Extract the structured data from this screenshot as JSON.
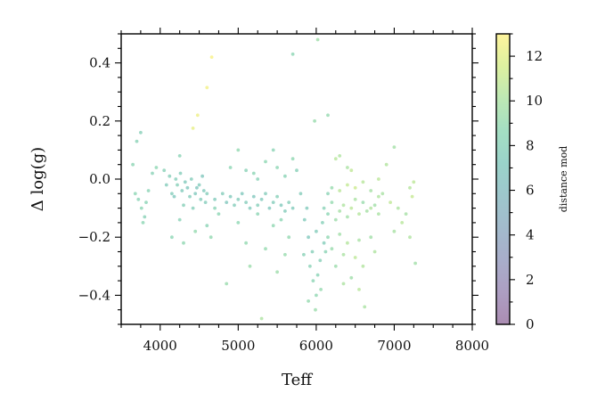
{
  "chart_data": {
    "type": "scatter",
    "title": "",
    "xlabel": "Teff",
    "ylabel": "Δ log(g)",
    "xlim": [
      3500,
      8000
    ],
    "ylim": [
      -0.5,
      0.5
    ],
    "xticks": [
      4000,
      5000,
      6000,
      7000,
      8000
    ],
    "xtick_labels": [
      "4000",
      "5000",
      "6000",
      "7000",
      "8000"
    ],
    "yticks": [
      0.4,
      0.2,
      0.0,
      -0.2,
      -0.4
    ],
    "ytick_labels": [
      "0.4",
      "0.2",
      "0.0",
      "−0.2",
      "−0.4"
    ],
    "grid": false,
    "colorbar": {
      "label": "distance mod",
      "colormap": "viridis",
      "range": [
        0,
        13
      ],
      "ticks": [
        0,
        2,
        4,
        6,
        8,
        10,
        12
      ],
      "tick_labels": [
        "0",
        "2",
        "4",
        "6",
        "8",
        "10",
        "12"
      ]
    },
    "marker_alpha": 0.45,
    "points": [
      [
        3650,
        0.05,
        8.5
      ],
      [
        3700,
        0.13,
        8.2
      ],
      [
        3750,
        0.16,
        8.0
      ],
      [
        3680,
        -0.05,
        8.6
      ],
      [
        3720,
        -0.07,
        8.3
      ],
      [
        3760,
        -0.1,
        8.5
      ],
      [
        3800,
        -0.13,
        8.1
      ],
      [
        3850,
        -0.04,
        8.4
      ],
      [
        3900,
        0.02,
        8.2
      ],
      [
        3950,
        0.04,
        8.7
      ],
      [
        3780,
        -0.15,
        8.6
      ],
      [
        3820,
        -0.08,
        8.3
      ],
      [
        4050,
        0.03,
        8.1
      ],
      [
        4080,
        -0.02,
        7.5
      ],
      [
        4120,
        0.01,
        7.8
      ],
      [
        4150,
        -0.05,
        7.6
      ],
      [
        4180,
        -0.06,
        7.2
      ],
      [
        4200,
        0.0,
        7.8
      ],
      [
        4220,
        -0.02,
        8.0
      ],
      [
        4250,
        0.08,
        8.3
      ],
      [
        4260,
        0.02,
        7.7
      ],
      [
        4280,
        -0.04,
        7.4
      ],
      [
        4300,
        -0.09,
        7.9
      ],
      [
        4320,
        -0.01,
        7.3
      ],
      [
        4350,
        -0.03,
        7.1
      ],
      [
        4380,
        -0.06,
        7.5
      ],
      [
        4400,
        0.0,
        7.6
      ],
      [
        4420,
        -0.1,
        7.8
      ],
      [
        4450,
        -0.05,
        7.2
      ],
      [
        4470,
        -0.03,
        7.0
      ],
      [
        4500,
        -0.02,
        7.4
      ],
      [
        4520,
        -0.07,
        7.6
      ],
      [
        4540,
        0.01,
        7.1
      ],
      [
        4560,
        -0.04,
        7.3
      ],
      [
        4580,
        -0.08,
        7.5
      ],
      [
        4600,
        -0.05,
        7.7
      ],
      [
        4150,
        -0.2,
        8.6
      ],
      [
        4250,
        -0.14,
        8.2
      ],
      [
        4300,
        -0.22,
        8.8
      ],
      [
        4450,
        -0.18,
        9.0
      ],
      [
        4600,
        -0.16,
        8.4
      ],
      [
        4650,
        -0.2,
        8.9
      ],
      [
        4700,
        -0.1,
        8.3
      ],
      [
        4750,
        -0.12,
        8.6
      ],
      [
        4420,
        0.175,
        12.2
      ],
      [
        4480,
        0.22,
        12.4
      ],
      [
        4600,
        0.315,
        12.6
      ],
      [
        4660,
        0.42,
        12.8
      ],
      [
        4700,
        -0.07,
        7.4
      ],
      [
        4800,
        -0.05,
        7.6
      ],
      [
        4850,
        -0.08,
        7.1
      ],
      [
        4900,
        -0.06,
        7.3
      ],
      [
        4950,
        -0.09,
        7.7
      ],
      [
        5000,
        -0.07,
        7.5
      ],
      [
        5050,
        -0.05,
        7.2
      ],
      [
        5100,
        -0.08,
        7.6
      ],
      [
        5150,
        -0.1,
        7.4
      ],
      [
        5200,
        -0.06,
        7.1
      ],
      [
        5250,
        -0.09,
        7.8
      ],
      [
        5300,
        -0.07,
        7.3
      ],
      [
        5350,
        -0.05,
        7.6
      ],
      [
        5400,
        -0.1,
        7.2
      ],
      [
        5450,
        -0.08,
        7.5
      ],
      [
        5500,
        -0.06,
        7.9
      ],
      [
        5550,
        -0.09,
        7.3
      ],
      [
        5600,
        -0.11,
        7.6
      ],
      [
        5650,
        -0.08,
        7.8
      ],
      [
        5700,
        -0.1,
        7.4
      ],
      [
        4900,
        0.04,
        8.6
      ],
      [
        5000,
        0.1,
        8.9
      ],
      [
        5100,
        0.03,
        8.2
      ],
      [
        5200,
        0.02,
        8.5
      ],
      [
        5350,
        0.06,
        8.7
      ],
      [
        5450,
        0.1,
        8.4
      ],
      [
        5500,
        0.04,
        8.6
      ],
      [
        5600,
        0.01,
        8.3
      ],
      [
        5700,
        0.07,
        8.8
      ],
      [
        5250,
        0.0,
        8.1
      ],
      [
        4850,
        -0.36,
        9.2
      ],
      [
        5000,
        -0.15,
        8.7
      ],
      [
        5100,
        -0.22,
        8.9
      ],
      [
        5150,
        -0.3,
        9.3
      ],
      [
        5250,
        -0.12,
        8.5
      ],
      [
        5300,
        -0.48,
        10.1
      ],
      [
        5350,
        -0.24,
        9.0
      ],
      [
        5450,
        -0.16,
        8.8
      ],
      [
        5500,
        -0.32,
        9.4
      ],
      [
        5550,
        -0.14,
        8.6
      ],
      [
        5600,
        -0.26,
        9.1
      ],
      [
        5650,
        -0.2,
        8.9
      ],
      [
        5700,
        0.43,
        8.6
      ],
      [
        5750,
        0.03,
        8.0
      ],
      [
        5800,
        -0.05,
        7.6
      ],
      [
        5850,
        -0.14,
        7.4
      ],
      [
        5900,
        -0.2,
        7.2
      ],
      [
        5950,
        -0.25,
        7.8
      ],
      [
        6000,
        -0.18,
        7.5
      ],
      [
        6050,
        -0.28,
        8.0
      ],
      [
        6100,
        -0.22,
        7.7
      ],
      [
        5880,
        -0.1,
        7.3
      ],
      [
        5920,
        -0.3,
        8.2
      ],
      [
        5960,
        -0.35,
        8.5
      ],
      [
        6000,
        -0.4,
        8.8
      ],
      [
        6020,
        -0.33,
        8.3
      ],
      [
        6060,
        -0.38,
        9.0
      ],
      [
        6080,
        -0.15,
        7.9
      ],
      [
        5990,
        -0.45,
        9.3
      ],
      [
        5900,
        -0.42,
        9.0
      ],
      [
        6120,
        -0.25,
        8.4
      ],
      [
        5840,
        -0.26,
        8.1
      ],
      [
        5980,
        0.2,
        9.2
      ],
      [
        6020,
        0.48,
        9.5
      ],
      [
        6150,
        0.22,
        9.0
      ],
      [
        6250,
        0.07,
        10.5
      ],
      [
        6300,
        0.08,
        10.2
      ],
      [
        6400,
        0.04,
        10.0
      ],
      [
        6450,
        0.03,
        10.8
      ],
      [
        6100,
        -0.1,
        8.2
      ],
      [
        6150,
        -0.12,
        8.6
      ],
      [
        6200,
        -0.08,
        9.0
      ],
      [
        6250,
        -0.14,
        9.4
      ],
      [
        6300,
        -0.11,
        9.8
      ],
      [
        6350,
        -0.09,
        10.2
      ],
      [
        6400,
        -0.13,
        9.6
      ],
      [
        6450,
        -0.1,
        10.6
      ],
      [
        6500,
        -0.07,
        10.0
      ],
      [
        6550,
        -0.12,
        10.4
      ],
      [
        6600,
        -0.08,
        9.2
      ],
      [
        6650,
        -0.11,
        9.8
      ],
      [
        6700,
        -0.1,
        10.3
      ],
      [
        6750,
        -0.09,
        9.6
      ],
      [
        6800,
        -0.12,
        10.0
      ],
      [
        6150,
        -0.05,
        8.4
      ],
      [
        6200,
        -0.03,
        9.1
      ],
      [
        6300,
        -0.04,
        10.6
      ],
      [
        6400,
        -0.02,
        10.9
      ],
      [
        6500,
        -0.03,
        11.2
      ],
      [
        6600,
        -0.01,
        10.5
      ],
      [
        6700,
        -0.04,
        9.8
      ],
      [
        6800,
        -0.06,
        10.2
      ],
      [
        6150,
        -0.2,
        8.8
      ],
      [
        6200,
        -0.24,
        9.2
      ],
      [
        6300,
        -0.19,
        9.6
      ],
      [
        6350,
        -0.26,
        10.0
      ],
      [
        6400,
        -0.22,
        10.4
      ],
      [
        6500,
        -0.27,
        10.7
      ],
      [
        6550,
        -0.21,
        9.9
      ],
      [
        6600,
        -0.3,
        10.3
      ],
      [
        6450,
        -0.34,
        9.5
      ],
      [
        6350,
        -0.36,
        10.1
      ],
      [
        6250,
        -0.3,
        9.3
      ],
      [
        6550,
        -0.38,
        10.5
      ],
      [
        6620,
        -0.44,
        10.0
      ],
      [
        6700,
        -0.2,
        9.6
      ],
      [
        6750,
        -0.25,
        10.2
      ],
      [
        6800,
        0.0,
        10.6
      ],
      [
        6850,
        -0.05,
        9.9
      ],
      [
        6900,
        0.05,
        10.3
      ],
      [
        6950,
        -0.08,
        10.8
      ],
      [
        7000,
        0.11,
        9.7
      ],
      [
        7050,
        -0.1,
        10.1
      ],
      [
        7100,
        -0.15,
        10.5
      ],
      [
        7150,
        -0.12,
        9.8
      ],
      [
        7200,
        -0.03,
        10.4
      ],
      [
        7230,
        -0.06,
        11.0
      ],
      [
        7250,
        -0.01,
        10.7
      ],
      [
        7270,
        -0.29,
        9.6
      ],
      [
        7200,
        -0.2,
        10.2
      ],
      [
        7000,
        -0.18,
        9.9
      ]
    ]
  }
}
